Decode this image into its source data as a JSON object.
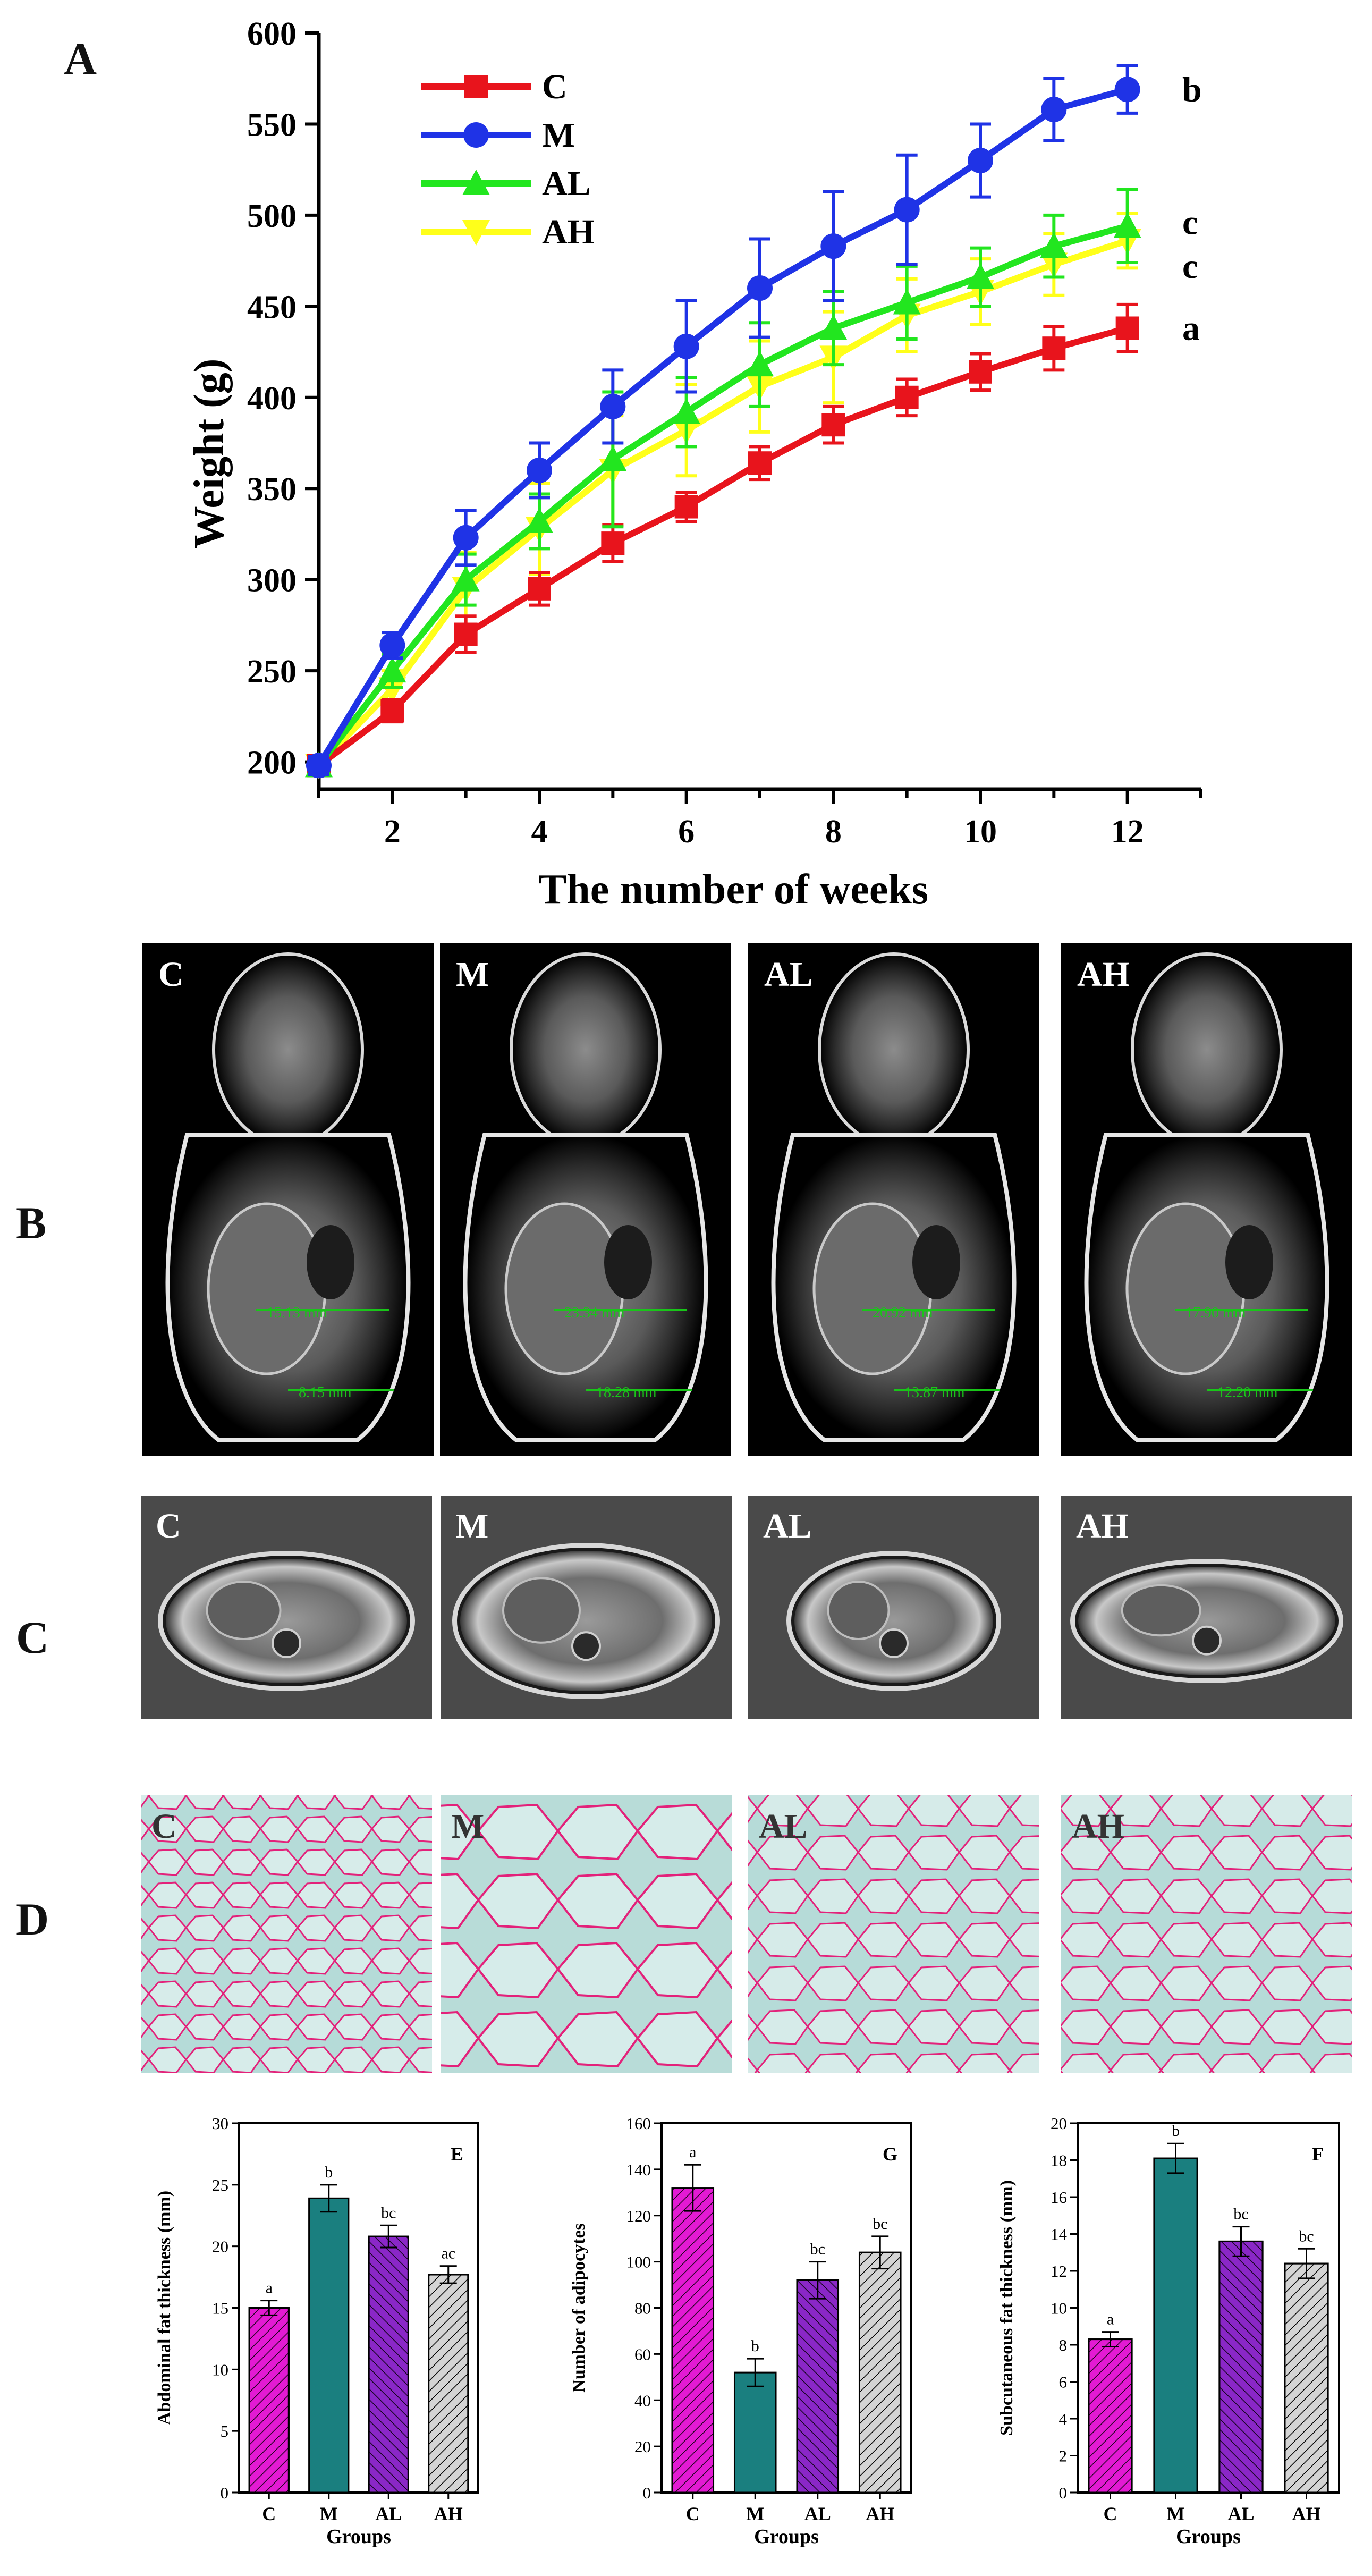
{
  "panels": {
    "A": "A",
    "B": "B",
    "C": "C",
    "D": "D"
  },
  "micro_labels": {
    "B": [
      "C",
      "M",
      "AL",
      "AH"
    ],
    "C": [
      "C",
      "M",
      "AL",
      "AH"
    ],
    "D": [
      "C",
      "M",
      "AL",
      "AH"
    ]
  },
  "mri_measurements": [
    [
      "15.13 mm",
      "8.15 mm"
    ],
    [
      "23.34 mm",
      "18.28 mm"
    ],
    [
      "20.92 mm",
      "13.87 mm"
    ],
    [
      "17.90 mm",
      "12.20 mm"
    ]
  ],
  "colors": {
    "C": "#e8141c",
    "M": "#1f33e6",
    "AL": "#22e61f",
    "AH": "#ffff1a",
    "bar_C": "#e31ad3",
    "bar_M": "#1a7f7f",
    "bar_AL": "#8a27c7",
    "bar_AH": "#d4d4d4"
  },
  "chart_data": [
    {
      "type": "line",
      "panel": "A",
      "title": "",
      "xlabel": "The number of weeks",
      "ylabel": "Weight  (g)",
      "xlim": [
        1,
        13
      ],
      "ylim": [
        185,
        600
      ],
      "xticks": [
        2,
        4,
        6,
        8,
        10,
        12
      ],
      "yticks": [
        200,
        250,
        300,
        350,
        400,
        450,
        500,
        550,
        600
      ],
      "legend_position": "top-left",
      "x": [
        1,
        2,
        3,
        4,
        5,
        6,
        7,
        8,
        9,
        10,
        11,
        12
      ],
      "series": [
        {
          "name": "C",
          "marker": "square",
          "values": [
            198,
            228,
            270,
            295,
            320,
            340,
            364,
            385,
            400,
            414,
            427,
            438
          ],
          "errors": [
            5,
            6,
            10,
            9,
            10,
            8,
            9,
            10,
            10,
            10,
            12,
            13
          ],
          "sig_label": "a"
        },
        {
          "name": "M",
          "marker": "circle",
          "values": [
            198,
            264,
            323,
            360,
            395,
            428,
            460,
            483,
            503,
            530,
            558,
            569
          ],
          "errors": [
            5,
            7,
            15,
            15,
            20,
            25,
            27,
            30,
            30,
            20,
            17,
            13
          ],
          "sig_label": "b"
        },
        {
          "name": "AL",
          "marker": "triangle-up",
          "values": [
            198,
            250,
            300,
            332,
            366,
            392,
            418,
            438,
            452,
            466,
            483,
            494
          ],
          "errors": [
            5,
            9,
            14,
            15,
            37,
            19,
            23,
            20,
            20,
            16,
            17,
            20
          ],
          "sig_label": "c"
        },
        {
          "name": "AH",
          "marker": "triangle-down",
          "values": [
            198,
            240,
            295,
            328,
            360,
            382,
            406,
            422,
            445,
            458,
            473,
            486
          ],
          "errors": [
            5,
            10,
            20,
            25,
            30,
            25,
            25,
            25,
            20,
            18,
            17,
            15
          ],
          "sig_label": "c"
        }
      ]
    },
    {
      "type": "bar",
      "panel": "E",
      "panel_label": "E",
      "categories": [
        "C",
        "M",
        "AL",
        "AH"
      ],
      "values": [
        15,
        23.9,
        20.8,
        17.7
      ],
      "errors": [
        0.6,
        1.1,
        0.9,
        0.7
      ],
      "sig_labels": [
        "a",
        "b",
        "bc",
        "ac"
      ],
      "xlabel": "Groups",
      "ylabel": "Abdominal fat thickness (mm)",
      "ylim": [
        0,
        30
      ],
      "yticks": [
        0,
        5,
        10,
        15,
        20,
        25,
        30
      ]
    },
    {
      "type": "bar",
      "panel": "G",
      "panel_label": "G",
      "categories": [
        "C",
        "M",
        "AL",
        "AH"
      ],
      "values": [
        132,
        52,
        92,
        104
      ],
      "errors": [
        10,
        6,
        8,
        7
      ],
      "sig_labels": [
        "a",
        "b",
        "bc",
        "bc"
      ],
      "xlabel": "Groups",
      "ylabel": "Number of adipocytes",
      "ylim": [
        0,
        160
      ],
      "yticks": [
        0,
        20,
        40,
        60,
        80,
        100,
        120,
        140,
        160
      ]
    },
    {
      "type": "bar",
      "panel": "F",
      "panel_label": "F",
      "categories": [
        "C",
        "M",
        "AL",
        "AH"
      ],
      "values": [
        8.3,
        18.1,
        13.6,
        12.4
      ],
      "errors": [
        0.4,
        0.8,
        0.8,
        0.8
      ],
      "sig_labels": [
        "a",
        "b",
        "bc",
        "bc"
      ],
      "xlabel": "Groups",
      "ylabel": "Subcutaneous fat thickness (mm)",
      "ylim": [
        0,
        20
      ],
      "yticks": [
        0,
        2,
        4,
        6,
        8,
        10,
        12,
        14,
        16,
        18,
        20
      ]
    }
  ]
}
